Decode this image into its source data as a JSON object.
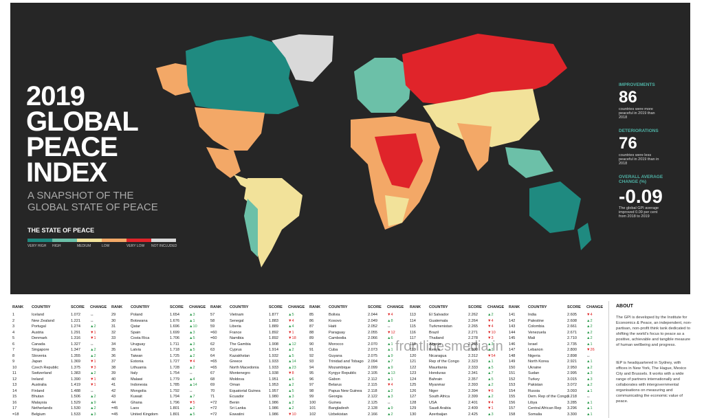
{
  "header": {
    "title_lines": [
      "2019",
      "GLOBAL",
      "PEACE",
      "INDEX"
    ],
    "subtitle_lines": [
      "A SNAPSHOT OF THE",
      "GLOBAL STATE OF PEACE"
    ]
  },
  "legend": {
    "title": "THE STATE OF PEACE",
    "items": [
      {
        "label": "VERY HIGH",
        "color": "#1f8a80"
      },
      {
        "label": "HIGH",
        "color": "#6cc0a8"
      },
      {
        "label": "MEDIUM",
        "color": "#f2e29a"
      },
      {
        "label": "LOW",
        "color": "#f3a867"
      },
      {
        "label": "VERY LOW",
        "color": "#e0242a"
      },
      {
        "label": "NOT INCLUDED",
        "color": "#d9d9d9"
      }
    ]
  },
  "stats": [
    {
      "label": "IMPROVEMENTS",
      "value": "86",
      "note": "countries were more peaceful in 2019 than 2018"
    },
    {
      "label": "DETERIORATIONS",
      "value": "76",
      "note": "countries were less peaceful in 2019 than in 2018"
    },
    {
      "label": "OVERALL AVERAGE CHANGE (%)",
      "value": "-0.09",
      "note": "The global GPI average improved 0.09 per cent from 2018 to 2019"
    }
  ],
  "table": {
    "headers": [
      "RANK",
      "COUNTRY",
      "SCORE",
      "CHANGE"
    ],
    "groups": [
      [
        [
          "1",
          "Iceland",
          "1.072",
          "↔"
        ],
        [
          "2",
          "New Zealand",
          "1.221",
          "↔"
        ],
        [
          "3",
          "Portugal",
          "1.274",
          "▲2"
        ],
        [
          "4",
          "Austria",
          "1.291",
          "▼1"
        ],
        [
          "5",
          "Denmark",
          "1.316",
          "▼1"
        ],
        [
          "6",
          "Canada",
          "1.327",
          "↔"
        ],
        [
          "7",
          "Singapore",
          "1.347",
          "▲2"
        ],
        [
          "8",
          "Slovenia",
          "1.355",
          "▲2"
        ],
        [
          "9",
          "Japan",
          "1.369",
          "▼1"
        ],
        [
          "10",
          "Czech Republic",
          "1.375",
          "▼3"
        ],
        [
          "11",
          "Switzerland",
          "1.383",
          "▲2"
        ],
        [
          "12",
          "Ireland",
          "1.390",
          "▼1"
        ],
        [
          "13",
          "Australia",
          "1.419",
          "▼1"
        ],
        [
          "14",
          "Finland",
          "1.488",
          "↔"
        ],
        [
          "15",
          "Bhutan",
          "1.506",
          "▲2"
        ],
        [
          "16",
          "Malaysia",
          "1.529",
          "▲9"
        ],
        [
          "17",
          "Netherlands",
          "1.530",
          "▲2"
        ],
        [
          "=18",
          "Belgium",
          "1.533",
          "▲3"
        ]
      ],
      [
        [
          "29",
          "Poland",
          "1.654",
          "▲3"
        ],
        [
          "30",
          "Botswana",
          "1.676",
          "▲1"
        ],
        [
          "31",
          "Qatar",
          "1.696",
          "▲10"
        ],
        [
          "32",
          "Spain",
          "1.699",
          "▲3"
        ],
        [
          "33",
          "Costa Rica",
          "1.706",
          "▲5"
        ],
        [
          "34",
          "Uruguay",
          "1.711",
          "▲3"
        ],
        [
          "35",
          "Latvia",
          "1.718",
          "▲5"
        ],
        [
          "36",
          "Taiwan",
          "1.725",
          "▲2"
        ],
        [
          "37",
          "Estonia",
          "1.727",
          "▼4"
        ],
        [
          "38",
          "Lithuania",
          "1.728",
          "▲2"
        ],
        [
          "39",
          "Italy",
          "1.754",
          "↔"
        ],
        [
          "40",
          "Malawi",
          "1.779",
          "▲4"
        ],
        [
          "41",
          "Indonesia",
          "1.785",
          "▲14"
        ],
        [
          "42",
          "Mongolia",
          "1.792",
          "↔"
        ],
        [
          "43",
          "Kuwait",
          "1.794",
          "▲7"
        ],
        [
          "44",
          "Ghana",
          "1.796",
          "▼5"
        ],
        [
          "=45",
          "Laos",
          "1.801",
          "▲2"
        ],
        [
          "=45",
          "United Kingdom",
          "1.801",
          "▲5"
        ]
      ],
      [
        [
          "57",
          "Vietnam",
          "1.877",
          "▲5"
        ],
        [
          "58",
          "Senegal",
          "1.883",
          "▼4"
        ],
        [
          "59",
          "Liberia",
          "1.889",
          "▲4"
        ],
        [
          "=60",
          "France",
          "1.892",
          "▼1"
        ],
        [
          "=60",
          "Namibia",
          "1.892",
          "▼18"
        ],
        [
          "62",
          "The Gambia",
          "1.908",
          "▲12"
        ],
        [
          "63",
          "Cyprus",
          "1.914",
          "▲2"
        ],
        [
          "64",
          "Kazakhstan",
          "1.932",
          "▲5"
        ],
        [
          "=65",
          "Greece",
          "1.933",
          "▲14"
        ],
        [
          "=65",
          "North Macedonia",
          "1.933",
          "▲23"
        ],
        [
          "67",
          "Montenegro",
          "1.938",
          "▼8"
        ],
        [
          "68",
          "Moldova",
          "1.951",
          "▲6"
        ],
        [
          "69",
          "Oman",
          "1.953",
          "▲2"
        ],
        [
          "70",
          "Equatorial Guinea",
          "1.957",
          "▲5"
        ],
        [
          "71",
          "Ecuador",
          "1.980",
          "▲3"
        ],
        [
          "=72",
          "Benin",
          "1.986",
          "▲2"
        ],
        [
          "=72",
          "Sri Lanka",
          "1.986",
          "▲2"
        ],
        [
          "=72",
          "Eswatini",
          "1.986",
          "▼10"
        ]
      ],
      [
        [
          "85",
          "Bolivia",
          "2.044",
          "▼4"
        ],
        [
          "86",
          "Kosovo",
          "2.049",
          "▲8"
        ],
        [
          "87",
          "Haiti",
          "2.052",
          "↔"
        ],
        [
          "88",
          "Paraguay",
          "2.055",
          "▼12"
        ],
        [
          "89",
          "Cambodia",
          "2.066",
          "▲6"
        ],
        [
          "90",
          "Morocco",
          "2.070",
          "▲1"
        ],
        [
          "91",
          "Cuba",
          "2.073",
          "▲1"
        ],
        [
          "92",
          "Guyana",
          "2.075",
          "▲9"
        ],
        [
          "93",
          "Trinidad and Tobago",
          "2.094",
          "▲7"
        ],
        [
          "94",
          "Mozambique",
          "2.099",
          "▲9"
        ],
        [
          "95",
          "Kyrgyz Republic",
          "2.105",
          "▲13"
        ],
        [
          "96",
          "Gabon",
          "2.112",
          "▲1"
        ],
        [
          "97",
          "Belarus",
          "2.115",
          "▼4"
        ],
        [
          "98",
          "Papua New Guinea",
          "2.118",
          "▲2"
        ],
        [
          "99",
          "Georgia",
          "2.122",
          "▲3"
        ],
        [
          "100",
          "Guinea",
          "2.125",
          "↔"
        ],
        [
          "101",
          "Bangladesh",
          "2.128",
          "▲9"
        ],
        [
          "102",
          "Uzbekistan",
          "2.166",
          "▲2"
        ]
      ],
      [
        [
          "113",
          "El Salvador",
          "2.262",
          "▲2"
        ],
        [
          "114",
          "Guatemala",
          "2.264",
          "▼4"
        ],
        [
          "115",
          "Turkmenistan",
          "2.265",
          "▼4"
        ],
        [
          "116",
          "Brazil",
          "2.271",
          "▼10"
        ],
        [
          "117",
          "Thailand",
          "2.278",
          "▼3"
        ],
        [
          "118",
          "Algeria",
          "2.285",
          "▲3"
        ],
        [
          "119",
          "Kenya",
          "2.300",
          "▲1"
        ],
        [
          "120",
          "Nicaragua",
          "2.312",
          "▼54"
        ],
        [
          "121",
          "Rep of the Congo",
          "2.323",
          "▲1"
        ],
        [
          "122",
          "Mauritania",
          "2.333",
          "▲5"
        ],
        [
          "123",
          "Honduras",
          "2.341",
          "▲7"
        ],
        [
          "124",
          "Bahrain",
          "2.357",
          "▲5"
        ],
        [
          "125",
          "Myanmar",
          "2.393",
          "▲2"
        ],
        [
          "126",
          "Niger",
          "2.394",
          "▼6"
        ],
        [
          "127",
          "South Africa",
          "2.399",
          "▲2"
        ],
        [
          "128",
          "USA",
          "2.401",
          "▼4"
        ],
        [
          "129",
          "Saudi Arabia",
          "2.409",
          "▼1"
        ],
        [
          "130",
          "Azerbaijan",
          "2.425",
          "▲3"
        ]
      ],
      [
        [
          "141",
          "India",
          "2.605",
          "▼4"
        ],
        [
          "142",
          "Palestine",
          "2.608",
          "▲2"
        ],
        [
          "143",
          "Colombia",
          "2.661",
          "▲2"
        ],
        [
          "144",
          "Venezuela",
          "2.671",
          "▲2"
        ],
        [
          "145",
          "Mali",
          "2.710",
          "▲2"
        ],
        [
          "146",
          "Israel",
          "2.735",
          "▲1"
        ],
        [
          "147",
          "Lebanon",
          "2.800",
          "▼26"
        ],
        [
          "148",
          "Nigeria",
          "2.898",
          "↔"
        ],
        [
          "149",
          "North Korea",
          "2.921",
          "▲1"
        ],
        [
          "150",
          "Ukraine",
          "2.950",
          "▲2"
        ],
        [
          "151",
          "Sudan",
          "2.995",
          "▲3"
        ],
        [
          "152",
          "Turkey",
          "3.015",
          "▲3"
        ],
        [
          "153",
          "Pakistan",
          "3.072",
          "▲2"
        ],
        [
          "154",
          "Russia",
          "3.093",
          "▲1"
        ],
        [
          "155",
          "Dem. Rep of the Congo",
          "3.218",
          "↔"
        ],
        [
          "156",
          "Libya",
          "3.285",
          "▲1"
        ],
        [
          "157",
          "Central African Rep",
          "3.296",
          "▲1"
        ],
        [
          "158",
          "Somalia",
          "3.300",
          "▲1"
        ]
      ]
    ]
  },
  "about": {
    "title": "ABOUT",
    "paragraphs": [
      "The GPI is developed by the Institute for Economics & Peace, an independent, non-partisan, non-profit think tank dedicated to shifting the world's focus to peace as a positive, achievable and tangible measure of human wellbeing and progress.",
      "IEP is headquartered in Sydney, with offices in New York, The Hague, Mexico City and Brussels. It works with a wide range of partners internationally and collaborates with intergovernmental organisations on measuring and communicating the economic value of peace."
    ]
  },
  "watermark": "frontlinesmedia.in"
}
